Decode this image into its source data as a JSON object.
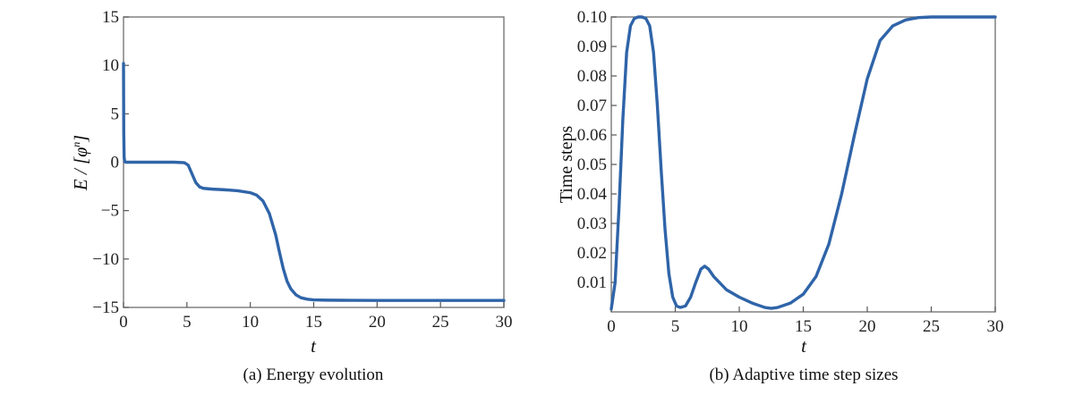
{
  "chart_data": [
    {
      "type": "line",
      "caption": "(a) Energy evolution",
      "xlabel": "t",
      "ylabel_prefix": "E / [",
      "ylabel_symbol": "φ",
      "ylabel_sup": "n",
      "ylabel_suffix": "]",
      "xlim": [
        0,
        30
      ],
      "ylim": [
        -15,
        15
      ],
      "xticks": [
        0,
        5,
        10,
        15,
        20,
        25,
        30
      ],
      "yticks": [
        15,
        10,
        5,
        0,
        -5,
        -10,
        -15
      ],
      "ytick_labels": [
        "15",
        "10",
        "5",
        "0",
        "−5",
        "−10",
        "−15"
      ],
      "grid": false,
      "series": [
        {
          "color": "#2f64a8",
          "x": [
            0,
            0.02,
            0.05,
            0.1,
            0.2,
            1,
            2,
            3,
            4,
            4.8,
            5.1,
            5.4,
            5.7,
            6.0,
            6.3,
            7,
            8,
            9,
            10,
            10.5,
            11,
            11.5,
            12,
            12.3,
            12.6,
            12.9,
            13.2,
            13.6,
            14,
            14.5,
            15,
            16,
            18,
            20,
            25,
            30
          ],
          "y": [
            10.2,
            3,
            0.5,
            0.05,
            0,
            0,
            0,
            0,
            0,
            -0.05,
            -0.3,
            -1.2,
            -2.1,
            -2.55,
            -2.7,
            -2.78,
            -2.85,
            -2.95,
            -3.15,
            -3.4,
            -4.0,
            -5.3,
            -7.5,
            -9.3,
            -11.0,
            -12.3,
            -13.1,
            -13.7,
            -14.0,
            -14.15,
            -14.22,
            -14.25,
            -14.27,
            -14.28,
            -14.28,
            -14.28
          ]
        }
      ]
    },
    {
      "type": "line",
      "caption": "(b) Adaptive time step sizes",
      "xlabel": "t",
      "ylabel": "Time steps",
      "xlim": [
        0,
        30
      ],
      "ylim": [
        0,
        0.1
      ],
      "xticks": [
        0,
        5,
        10,
        15,
        20,
        25,
        30
      ],
      "yticks": [
        0.1,
        0.09,
        0.08,
        0.07,
        0.06,
        0.05,
        0.04,
        0.03,
        0.02,
        0.01
      ],
      "ytick_labels": [
        "0.10",
        "0.09",
        "0.08",
        "0.07",
        "0.06",
        "0.05",
        "0.04",
        "0.03",
        "0.02",
        "0.01"
      ],
      "grid": false,
      "series": [
        {
          "color": "#2f64a8",
          "x": [
            0,
            0.3,
            0.6,
            0.9,
            1.2,
            1.5,
            1.8,
            2.1,
            2.4,
            2.7,
            3.0,
            3.3,
            3.6,
            3.9,
            4.2,
            4.5,
            4.8,
            5.1,
            5.4,
            5.8,
            6.2,
            6.6,
            7.0,
            7.3,
            7.6,
            8,
            9,
            10,
            11,
            12,
            12.5,
            13,
            14,
            15,
            16,
            17,
            18,
            19,
            20,
            21,
            22,
            23,
            24,
            25,
            27,
            30
          ],
          "y": [
            0.001,
            0.01,
            0.035,
            0.065,
            0.088,
            0.097,
            0.0995,
            0.1,
            0.1,
            0.0995,
            0.097,
            0.088,
            0.07,
            0.048,
            0.028,
            0.013,
            0.005,
            0.002,
            0.0015,
            0.002,
            0.005,
            0.01,
            0.0145,
            0.0155,
            0.0145,
            0.012,
            0.0075,
            0.005,
            0.003,
            0.0015,
            0.0012,
            0.0015,
            0.003,
            0.006,
            0.012,
            0.023,
            0.04,
            0.06,
            0.079,
            0.092,
            0.097,
            0.099,
            0.0998,
            0.1,
            0.1,
            0.1
          ]
        }
      ]
    }
  ]
}
